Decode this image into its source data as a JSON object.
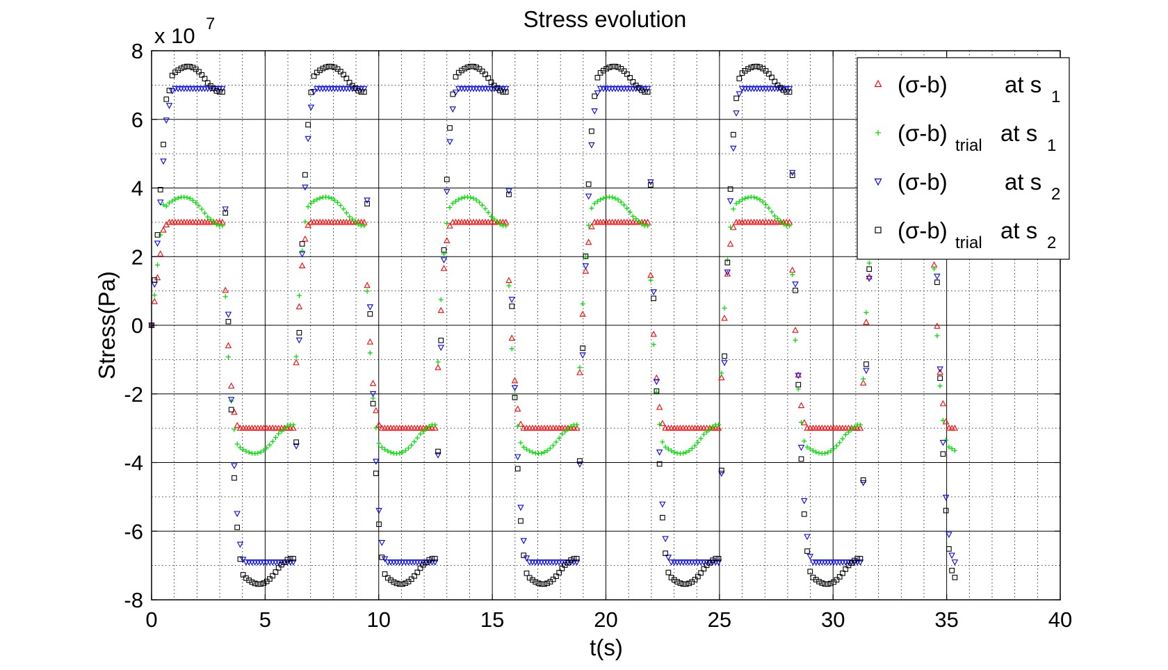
{
  "chart_data": {
    "type": "scatter",
    "title": "Stress evolution",
    "xlabel": "t(s)",
    "ylabel": "Stress(Pa)",
    "y_multiplier_label": "x 10",
    "y_multiplier_exponent": "7",
    "xlim": [
      0,
      40
    ],
    "ylim": [
      -8,
      8
    ],
    "xticks": [
      "0",
      "5",
      "10",
      "15",
      "20",
      "25",
      "30",
      "35",
      "40"
    ],
    "yticks": [
      "-8",
      "-6",
      "-4",
      "-2",
      "0",
      "2",
      "4",
      "6",
      "8"
    ],
    "grid": true,
    "legend_position": "top-right",
    "period": 6.25,
    "cycles": 6,
    "t_end": 35.4,
    "time_step": 0.13,
    "series": [
      {
        "name_main": "(σ-b)",
        "name_sub": "",
        "name_tail": "at s",
        "name_tail_sub": "1",
        "marker": "triangle-up",
        "color": "#ff0000",
        "plateau_value": 3.0,
        "peak_value": 3.0,
        "transition_duration": 0.75,
        "yield_value": 3.0
      },
      {
        "name_main": "(σ-b)",
        "name_sub": "trial",
        "name_tail": "at s",
        "name_tail_sub": "1",
        "marker": "plus",
        "color": "#00e000",
        "plateau_value": 3.0,
        "peak_value": 3.8,
        "transition_duration": 0.75,
        "yield_value": 3.0
      },
      {
        "name_main": "(σ-b)",
        "name_sub": "",
        "name_tail": "at s",
        "name_tail_sub": "2",
        "marker": "triangle-down",
        "color": "#0000ff",
        "plateau_value": 6.9,
        "peak_value": 6.9,
        "transition_duration": 1.0,
        "yield_value": 6.9
      },
      {
        "name_main": "(σ-b)",
        "name_sub": "trial",
        "name_tail": "at s",
        "name_tail_sub": "2",
        "marker": "square",
        "color": "#000000",
        "plateau_value": 6.9,
        "peak_value": 7.6,
        "transition_duration": 1.0,
        "yield_value": 6.9
      }
    ]
  }
}
